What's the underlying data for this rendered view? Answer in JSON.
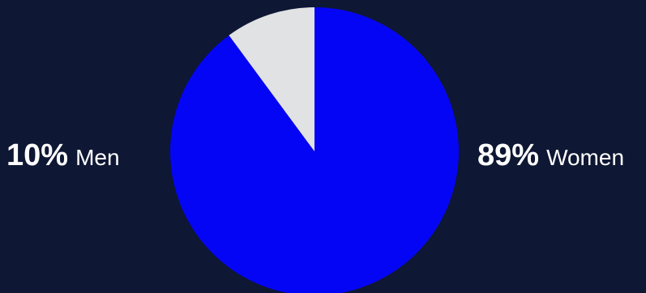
{
  "chart_data": {
    "type": "pie",
    "slices": [
      {
        "label": "Women",
        "value": 89,
        "display": "89%",
        "color": "#0505f5"
      },
      {
        "label": "Men",
        "value": 10,
        "display": "10%",
        "color": "#e1e2e4"
      }
    ]
  },
  "colors": {
    "background": "#0e1733",
    "text": "#ffffff"
  },
  "labels": {
    "men_percent": "10%",
    "men_name": "Men",
    "women_percent": "89%",
    "women_name": "Women"
  }
}
